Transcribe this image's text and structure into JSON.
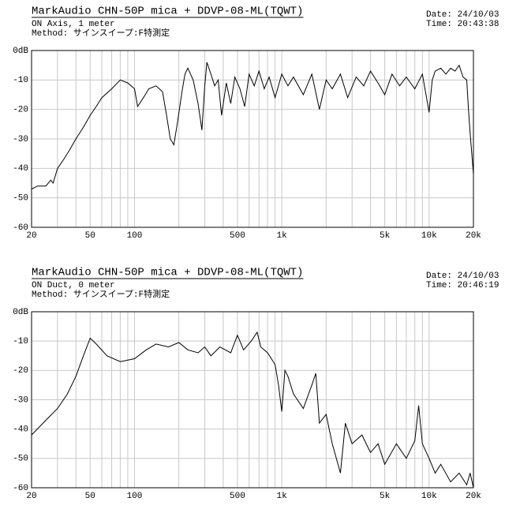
{
  "chart_data": [
    {
      "type": "line",
      "title": "MarkAudio CHN-50P mica + DDVP-08-ML(TQWT)",
      "subtitle": [
        "ON Axis, 1 meter",
        "Method: サインスイープ:F特測定"
      ],
      "date": "Date: 24/10/03",
      "time": "Time: 20:43:38",
      "log_x": true,
      "grid": true,
      "xlim": [
        20,
        20000
      ],
      "ylim": [
        -60,
        0
      ],
      "xticks": [
        20,
        50,
        100,
        500,
        {
          "value": 1000,
          "label": "1k"
        },
        {
          "value": 5000,
          "label": "5k"
        },
        {
          "value": 10000,
          "label": "10k"
        },
        {
          "value": 20000,
          "label": "20k"
        }
      ],
      "minor_xticks": [
        30,
        40,
        60,
        70,
        80,
        90,
        200,
        300,
        400,
        600,
        700,
        800,
        900,
        2000,
        3000,
        4000,
        6000,
        7000,
        8000,
        9000
      ],
      "yticks": [
        {
          "value": 0,
          "label": "0dB"
        },
        -10,
        -20,
        -30,
        -40,
        -50,
        -60
      ],
      "series": [
        {
          "color": "#000000",
          "x": [
            20,
            22,
            25,
            27,
            28,
            30,
            33,
            36,
            40,
            45,
            50,
            55,
            60,
            70,
            80,
            90,
            100,
            105,
            115,
            125,
            140,
            155,
            165,
            175,
            185,
            195,
            210,
            220,
            230,
            250,
            270,
            287,
            300,
            310,
            330,
            350,
            370,
            390,
            420,
            450,
            480,
            520,
            560,
            600,
            650,
            700,
            760,
            820,
            900,
            1000,
            1100,
            1200,
            1400,
            1600,
            1800,
            2000,
            2200,
            2500,
            2800,
            3200,
            3600,
            4000,
            4500,
            5000,
            5600,
            6300,
            7000,
            8000,
            9000,
            10000,
            10500,
            11000,
            12000,
            13000,
            14000,
            15000,
            16000,
            17000,
            18000,
            18500,
            19000,
            19500,
            20000
          ],
          "values": [
            -47,
            -46,
            -46,
            -44,
            -45,
            -40,
            -37,
            -34,
            -30,
            -26,
            -22,
            -19,
            -16,
            -13,
            -10,
            -11,
            -13,
            -19,
            -16,
            -13,
            -12,
            -14,
            -22,
            -30,
            -32,
            -25,
            -14,
            -8,
            -6,
            -10,
            -18,
            -27,
            -12,
            -4,
            -8,
            -12,
            -10,
            -22,
            -11,
            -18,
            -9,
            -13,
            -19,
            -8,
            -12,
            -7,
            -13,
            -9,
            -16,
            -8,
            -12,
            -9,
            -15,
            -8,
            -20,
            -10,
            -13,
            -8,
            -16,
            -9,
            -12,
            -7,
            -11,
            -15,
            -8,
            -12,
            -9,
            -13,
            -8,
            -21,
            -10,
            -7,
            -6,
            -8,
            -6,
            -7,
            -5,
            -9,
            -10,
            -20,
            -28,
            -35,
            -42
          ]
        }
      ]
    },
    {
      "type": "line",
      "title": "MarkAudio CHN-50P mica + DDVP-08-ML(TQWT)",
      "subtitle": [
        "ON Duct, 0 meter",
        "Method: サインスイープ:F特測定"
      ],
      "date": "Date: 24/10/03",
      "time": "Time: 20:46:19",
      "log_x": true,
      "grid": true,
      "xlim": [
        20,
        20000
      ],
      "ylim": [
        -60,
        0
      ],
      "xticks": [
        20,
        50,
        100,
        500,
        {
          "value": 1000,
          "label": "1k"
        },
        {
          "value": 5000,
          "label": "5k"
        },
        {
          "value": 10000,
          "label": "10k"
        },
        {
          "value": 20000,
          "label": "20k"
        }
      ],
      "minor_xticks": [
        30,
        40,
        60,
        70,
        80,
        90,
        200,
        300,
        400,
        600,
        700,
        800,
        900,
        2000,
        3000,
        4000,
        6000,
        7000,
        8000,
        9000
      ],
      "yticks": [
        {
          "value": 0,
          "label": "0dB"
        },
        -10,
        -20,
        -30,
        -40,
        -50,
        -60
      ],
      "series": [
        {
          "color": "#000000",
          "x": [
            20,
            25,
            30,
            35,
            40,
            45,
            50,
            55,
            65,
            80,
            100,
            120,
            140,
            170,
            200,
            230,
            270,
            300,
            330,
            380,
            450,
            500,
            550,
            620,
            680,
            720,
            800,
            900,
            950,
            1000,
            1050,
            1100,
            1200,
            1400,
            1600,
            1700,
            1800,
            2000,
            2200,
            2500,
            2700,
            3000,
            3500,
            4000,
            4500,
            5000,
            6000,
            7000,
            8000,
            8500,
            9000,
            10000,
            11000,
            12000,
            14000,
            16000,
            18000,
            19000,
            20000
          ],
          "values": [
            -42,
            -37,
            -33,
            -28,
            -22,
            -15,
            -9,
            -11,
            -15,
            -17,
            -16,
            -13,
            -11,
            -12,
            -10.5,
            -13,
            -14,
            -12,
            -15,
            -12,
            -14,
            -8,
            -13,
            -10,
            -7,
            -12,
            -14,
            -18,
            -25,
            -34,
            -20,
            -22,
            -28,
            -33,
            -25,
            -21,
            -38,
            -35,
            -45,
            -55,
            -38,
            -45,
            -42,
            -48,
            -45,
            -52,
            -45,
            -50,
            -44,
            -32,
            -45,
            -50,
            -55,
            -52,
            -58,
            -55,
            -59,
            -55,
            -60
          ]
        }
      ]
    }
  ]
}
